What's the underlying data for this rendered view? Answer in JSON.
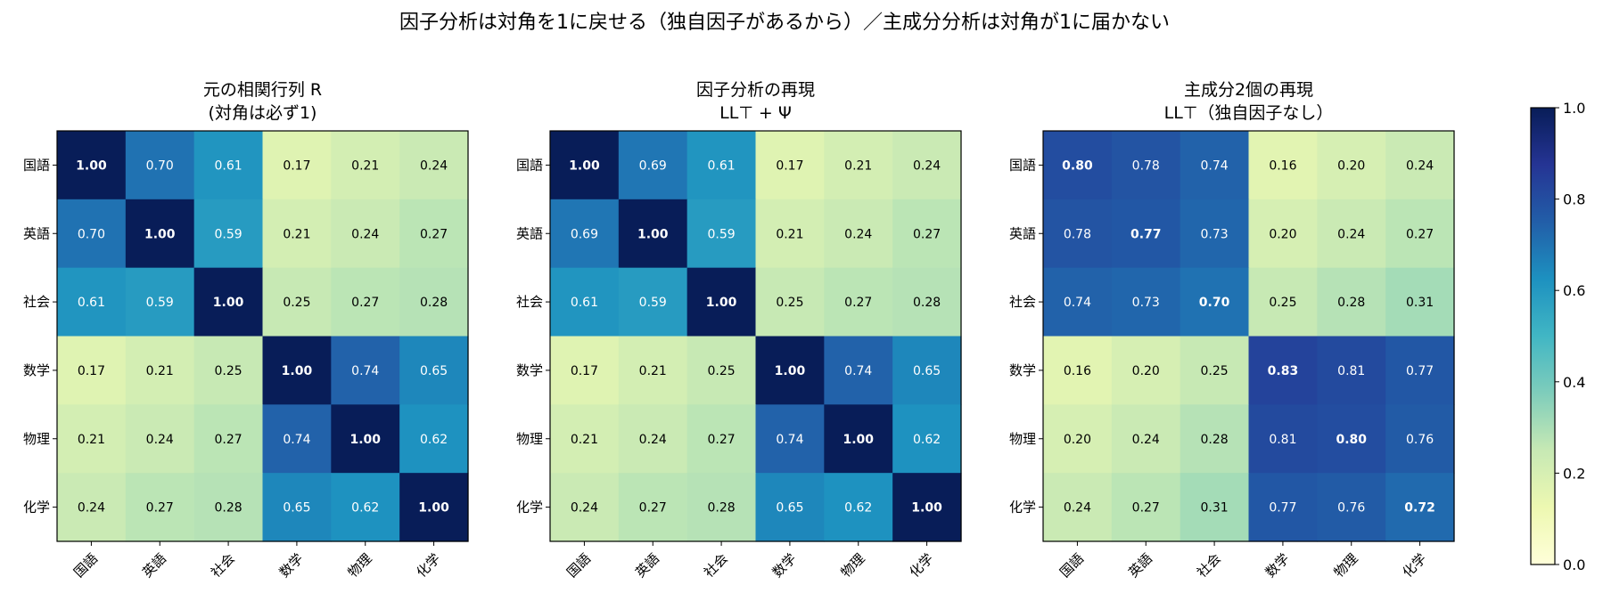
{
  "figure_title": "因子分析は対角を1に戻せる（独自因子があるから）／主成分分析は対角が1に届かない",
  "chart_data": [
    {
      "type": "heatmap",
      "title_lines": [
        "元の相関行列 R",
        "(対角は必ず1)"
      ],
      "x_tick_labels": [
        "国語",
        "英語",
        "社会",
        "数学",
        "物理",
        "化学"
      ],
      "y_tick_labels": [
        "国語",
        "英語",
        "社会",
        "数学",
        "物理",
        "化学"
      ],
      "values": [
        [
          1.0,
          0.7,
          0.61,
          0.17,
          0.21,
          0.24
        ],
        [
          0.7,
          1.0,
          0.59,
          0.21,
          0.24,
          0.27
        ],
        [
          0.61,
          0.59,
          1.0,
          0.25,
          0.27,
          0.28
        ],
        [
          0.17,
          0.21,
          0.25,
          1.0,
          0.74,
          0.65
        ],
        [
          0.21,
          0.24,
          0.27,
          0.74,
          1.0,
          0.62
        ],
        [
          0.24,
          0.27,
          0.28,
          0.65,
          0.62,
          1.0
        ]
      ],
      "cell_text": [
        [
          "1.00",
          "0.70",
          "0.61",
          "0.17",
          "0.21",
          "0.24"
        ],
        [
          "0.70",
          "1.00",
          "0.59",
          "0.21",
          "0.24",
          "0.27"
        ],
        [
          "0.61",
          "0.59",
          "1.00",
          "0.25",
          "0.27",
          "0.28"
        ],
        [
          "0.17",
          "0.21",
          "0.25",
          "1.00",
          "0.74",
          "0.65"
        ],
        [
          "0.21",
          "0.24",
          "0.27",
          "0.74",
          "1.00",
          "0.62"
        ],
        [
          "0.24",
          "0.27",
          "0.28",
          "0.65",
          "0.62",
          "1.00"
        ]
      ],
      "bold_diagonal": true
    },
    {
      "type": "heatmap",
      "title_lines": [
        "因子分析の再現",
        "LL⊤ + Ψ"
      ],
      "x_tick_labels": [
        "国語",
        "英語",
        "社会",
        "数学",
        "物理",
        "化学"
      ],
      "y_tick_labels": [
        "国語",
        "英語",
        "社会",
        "数学",
        "物理",
        "化学"
      ],
      "values": [
        [
          1.0,
          0.69,
          0.61,
          0.17,
          0.21,
          0.24
        ],
        [
          0.69,
          1.0,
          0.59,
          0.21,
          0.24,
          0.27
        ],
        [
          0.61,
          0.59,
          1.0,
          0.25,
          0.27,
          0.28
        ],
        [
          0.17,
          0.21,
          0.25,
          1.0,
          0.74,
          0.65
        ],
        [
          0.21,
          0.24,
          0.27,
          0.74,
          1.0,
          0.62
        ],
        [
          0.24,
          0.27,
          0.28,
          0.65,
          0.62,
          1.0
        ]
      ],
      "cell_text": [
        [
          "1.00",
          "0.69",
          "0.61",
          "0.17",
          "0.21",
          "0.24"
        ],
        [
          "0.69",
          "1.00",
          "0.59",
          "0.21",
          "0.24",
          "0.27"
        ],
        [
          "0.61",
          "0.59",
          "1.00",
          "0.25",
          "0.27",
          "0.28"
        ],
        [
          "0.17",
          "0.21",
          "0.25",
          "1.00",
          "0.74",
          "0.65"
        ],
        [
          "0.21",
          "0.24",
          "0.27",
          "0.74",
          "1.00",
          "0.62"
        ],
        [
          "0.24",
          "0.27",
          "0.28",
          "0.65",
          "0.62",
          "1.00"
        ]
      ],
      "bold_diagonal": true
    },
    {
      "type": "heatmap",
      "title_lines": [
        "主成分2個の再現",
        "LL⊤（独自因子なし）"
      ],
      "x_tick_labels": [
        "国語",
        "英語",
        "社会",
        "数学",
        "物理",
        "化学"
      ],
      "y_tick_labels": [
        "国語",
        "英語",
        "社会",
        "数学",
        "物理",
        "化学"
      ],
      "values": [
        [
          0.8,
          0.78,
          0.74,
          0.16,
          0.2,
          0.24
        ],
        [
          0.78,
          0.77,
          0.73,
          0.2,
          0.24,
          0.27
        ],
        [
          0.74,
          0.73,
          0.7,
          0.25,
          0.28,
          0.31
        ],
        [
          0.16,
          0.2,
          0.25,
          0.83,
          0.81,
          0.77
        ],
        [
          0.2,
          0.24,
          0.28,
          0.81,
          0.8,
          0.76
        ],
        [
          0.24,
          0.27,
          0.31,
          0.77,
          0.76,
          0.72
        ]
      ],
      "cell_text": [
        [
          "0.80",
          "0.78",
          "0.74",
          "0.16",
          "0.20",
          "0.24"
        ],
        [
          "0.78",
          "0.77",
          "0.73",
          "0.20",
          "0.24",
          "0.27"
        ],
        [
          "0.74",
          "0.73",
          "0.70",
          "0.25",
          "0.28",
          "0.31"
        ],
        [
          "0.16",
          "0.20",
          "0.25",
          "0.83",
          "0.81",
          "0.77"
        ],
        [
          "0.20",
          "0.24",
          "0.28",
          "0.81",
          "0.80",
          "0.76"
        ],
        [
          "0.24",
          "0.27",
          "0.31",
          "0.77",
          "0.76",
          "0.72"
        ]
      ],
      "bold_diagonal": true
    }
  ],
  "colorbar": {
    "colormap": "YlGnBu",
    "range": [
      0.0,
      1.0
    ],
    "ticks": [
      0.0,
      0.2,
      0.4,
      0.6,
      0.8,
      1.0
    ],
    "tick_labels": [
      "0.0",
      "0.2",
      "0.4",
      "0.6",
      "0.8",
      "1.0"
    ],
    "stops": [
      "#ffffd9",
      "#edf8b1",
      "#c7e9b4",
      "#7fcdbb",
      "#41b6c4",
      "#1d91c0",
      "#225ea8",
      "#253494",
      "#081d58"
    ]
  }
}
